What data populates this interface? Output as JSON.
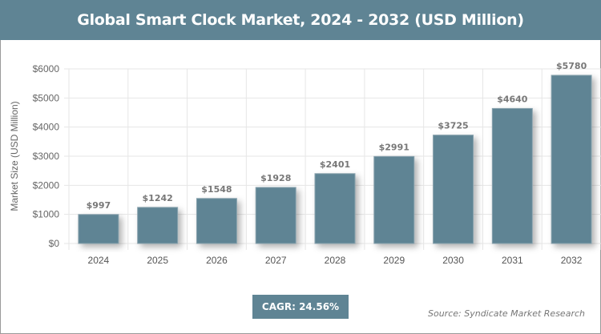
{
  "chart_data": {
    "type": "bar",
    "title": "Global Smart Clock Market, 2024 - 2032 (USD Million)",
    "categories": [
      "2024",
      "2025",
      "2026",
      "2027",
      "2028",
      "2029",
      "2030",
      "2031",
      "2032"
    ],
    "values": [
      997,
      1242,
      1548,
      1928,
      2401,
      2991,
      3725,
      4640,
      5780
    ],
    "data_labels": [
      "$997",
      "$1242",
      "$1548",
      "$1928",
      "$2401",
      "$2991",
      "$3725",
      "$4640",
      "$5780"
    ],
    "ylabel": "Market Size (USD Million)",
    "xlabel": "",
    "ylim": [
      0,
      6000
    ],
    "yticks": [
      "$0",
      "$1000",
      "$2000",
      "$3000",
      "$4000",
      "$5000",
      "$6000"
    ],
    "grid": true,
    "bar_color": "#5f8494"
  },
  "cagr": "CAGR: 24.56%",
  "source": "Source: Syndicate Market Research"
}
